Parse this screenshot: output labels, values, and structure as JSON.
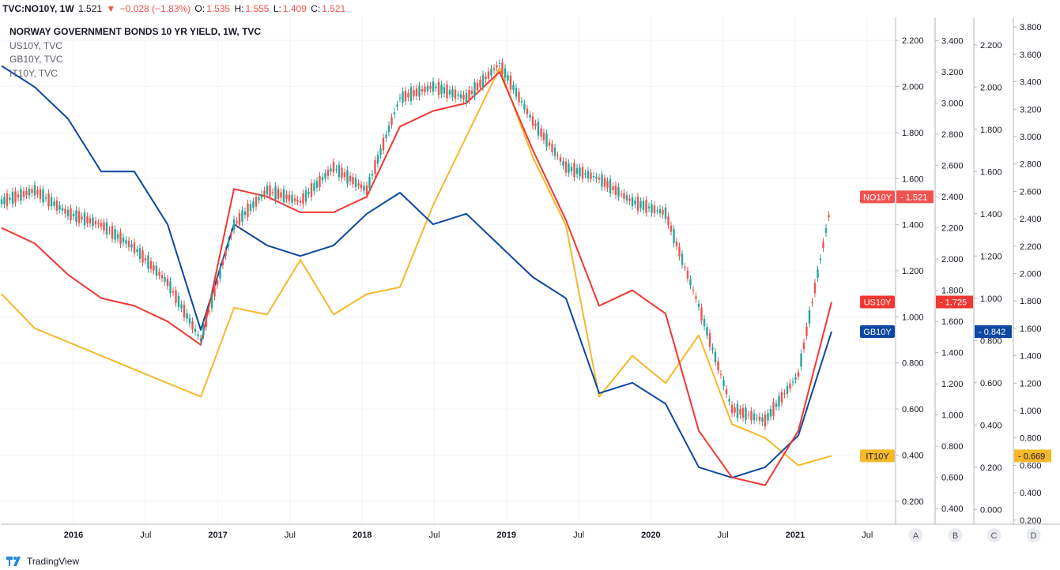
{
  "header": {
    "symbol": "TVC:NO10Y, 1W",
    "last": "1.521",
    "change": "−0.028 (−1.83%)",
    "o_label": "O:",
    "o": "1.535",
    "h_label": "H:",
    "h": "1.555",
    "l_label": "L:",
    "l": "1.409",
    "c_label": "C:",
    "c": "1.521"
  },
  "legend": {
    "main": "NORWAY GOVERNMENT BONDS 10 YR YIELD, 1W, TVC",
    "items": [
      "US10Y, TVC",
      "GB10Y, TVC",
      "IT10Y, TVC"
    ]
  },
  "footer": {
    "brand": "TradingView"
  },
  "colors": {
    "up": "#26a69a",
    "down": "#ef5350",
    "us": "#f23630",
    "gb": "#0d47a1",
    "it": "#f5b82a",
    "grid": "#f0f3fa"
  },
  "chart_data": {
    "type": "line",
    "x_ticks": [
      "2016",
      "Jul",
      "2017",
      "Jul",
      "2018",
      "Jul",
      "2019",
      "Jul",
      "2020",
      "Jul",
      "2021",
      "Jul"
    ],
    "x_range": [
      "2015-07",
      "2021-10"
    ],
    "axes": [
      {
        "id": "A",
        "series": "NO10Y",
        "ticks": [
          "2.200",
          "2.000",
          "1.800",
          "1.600",
          "1.400",
          "1.200",
          "1.000",
          "0.800",
          "0.600",
          "0.400",
          "0.200"
        ],
        "ylim": [
          0.1,
          2.3
        ]
      },
      {
        "id": "B",
        "series": "US10Y",
        "ticks": [
          "3.400",
          "3.200",
          "3.000",
          "2.800",
          "2.600",
          "2.400",
          "2.200",
          "2.000",
          "1.800",
          "1.600",
          "1.400",
          "1.200",
          "1.000",
          "0.800",
          "0.600",
          "0.400"
        ],
        "ylim": [
          0.3,
          3.55
        ]
      },
      {
        "id": "C",
        "series": "GB10Y",
        "ticks": [
          "2.200",
          "2.000",
          "1.800",
          "1.600",
          "1.400",
          "1.200",
          "1.000",
          "0.800",
          "0.600",
          "0.400",
          "0.200",
          "0.000"
        ],
        "ylim": [
          -0.07,
          2.33
        ]
      },
      {
        "id": "D",
        "series": "IT10Y",
        "ticks": [
          "3.800",
          "3.600",
          "3.400",
          "3.200",
          "3.000",
          "2.800",
          "2.600",
          "2.400",
          "2.200",
          "2.000",
          "1.800",
          "1.600",
          "1.400",
          "1.200",
          "1.000",
          "0.800",
          "0.600",
          "0.400",
          "0.200"
        ],
        "ylim": [
          0.17,
          3.87
        ]
      }
    ],
    "series_points_x": [
      0,
      3,
      6,
      9,
      12,
      15,
      18,
      21,
      24,
      27,
      30,
      33,
      36,
      39,
      42,
      45,
      48,
      51,
      54,
      57,
      60,
      63,
      66,
      69,
      72,
      75
    ],
    "series": [
      {
        "name": "NO10Y",
        "kind": "candlestick",
        "color": "#26a69a",
        "values": [
          1.5,
          1.55,
          1.45,
          1.4,
          1.3,
          1.15,
          0.9,
          1.4,
          1.55,
          1.5,
          1.65,
          1.55,
          1.95,
          2.0,
          1.95,
          2.1,
          1.85,
          1.65,
          1.6,
          1.5,
          1.45,
          1.05,
          0.6,
          0.55,
          0.75,
          1.5
        ],
        "price_label": "NO10Y",
        "price": "1.521"
      },
      {
        "name": "US10Y",
        "kind": "line",
        "color": "#f23630",
        "values": [
          2.2,
          2.1,
          1.9,
          1.75,
          1.7,
          1.6,
          1.45,
          2.45,
          2.4,
          2.3,
          2.3,
          2.4,
          2.85,
          2.95,
          3.0,
          3.2,
          2.7,
          2.25,
          1.7,
          1.8,
          1.65,
          0.9,
          0.6,
          0.55,
          0.9,
          1.725
        ],
        "price_label": "US10Y",
        "price": "1.725"
      },
      {
        "name": "GB10Y",
        "kind": "line",
        "color": "#0d47a1",
        "values": [
          2.1,
          2.0,
          1.85,
          1.6,
          1.6,
          1.35,
          0.85,
          1.35,
          1.25,
          1.2,
          1.25,
          1.4,
          1.5,
          1.35,
          1.4,
          1.25,
          1.1,
          1.0,
          0.55,
          0.6,
          0.5,
          0.2,
          0.15,
          0.2,
          0.35,
          0.842
        ],
        "price_label": "GB10Y",
        "price": "0.842"
      },
      {
        "name": "IT10Y",
        "kind": "line",
        "color": "#f5b82a",
        "values": [
          1.85,
          1.6,
          1.5,
          1.4,
          1.3,
          1.2,
          1.1,
          1.75,
          1.7,
          2.1,
          1.7,
          1.85,
          1.9,
          2.5,
          3.0,
          3.5,
          2.85,
          2.35,
          1.1,
          1.4,
          1.2,
          1.55,
          0.9,
          0.8,
          0.6,
          0.669
        ],
        "price_label": "IT10Y",
        "price": "0.669"
      }
    ]
  }
}
